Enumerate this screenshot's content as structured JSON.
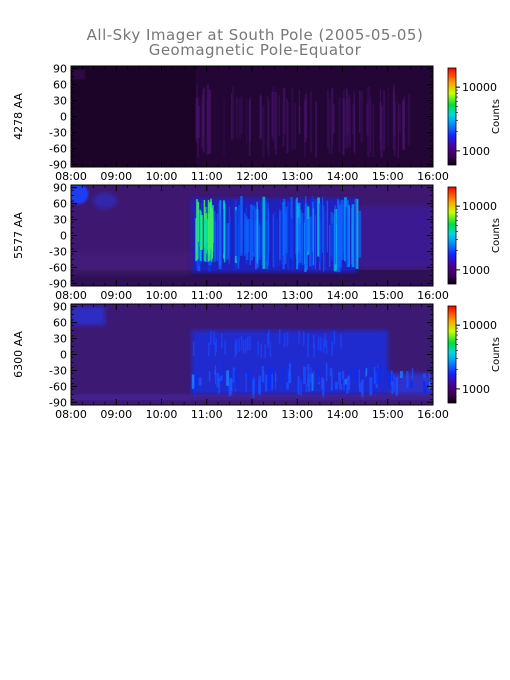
{
  "title": "All-Sky Imager at South Pole (2005-05-05)",
  "subtitle": "Geomagnetic Pole-Equator",
  "chart_data": [
    {
      "type": "heatmap",
      "ylabel": "4278 AA",
      "x_ticks": [
        "08:00",
        "09:00",
        "10:00",
        "11:00",
        "12:00",
        "13:00",
        "14:00",
        "15:00",
        "16:00"
      ],
      "y_ticks": [
        90,
        60,
        30,
        0,
        -30,
        -60,
        -90
      ],
      "ylim": [
        -95,
        95
      ],
      "xlim": [
        "08:00",
        "16:00"
      ],
      "colorbar": {
        "label": "Counts",
        "ticks": [
          10000,
          1000
        ],
        "tick_labels": [
          "10000",
          "1000"
        ],
        "scale": "log"
      },
      "dominant_level": "very low",
      "features": [
        {
          "time_range": [
            "08:00",
            "10:45"
          ],
          "lat_range": [
            -90,
            90
          ],
          "level": "background"
        },
        {
          "time_range": [
            "10:45",
            "15:30"
          ],
          "lat_range": [
            -80,
            60
          ],
          "level": "faint streaks"
        }
      ]
    },
    {
      "type": "heatmap",
      "ylabel": "5577 AA",
      "x_ticks": [
        "08:00",
        "09:00",
        "10:00",
        "11:00",
        "12:00",
        "13:00",
        "14:00",
        "15:00",
        "16:00"
      ],
      "y_ticks": [
        90,
        60,
        30,
        0,
        -30,
        -60,
        -90
      ],
      "ylim": [
        -95,
        95
      ],
      "xlim": [
        "08:00",
        "16:00"
      ],
      "colorbar": {
        "label": "Counts",
        "ticks": [
          10000,
          1000
        ],
        "tick_labels": [
          "10000",
          "1000"
        ],
        "scale": "log"
      },
      "features": [
        {
          "time_range": [
            "08:00",
            "08:30"
          ],
          "lat_range": [
            55,
            90
          ],
          "level": "moderate"
        },
        {
          "time_range": [
            "10:40",
            "14:20"
          ],
          "lat_range": [
            -70,
            75
          ],
          "level": "bright"
        },
        {
          "time_range": [
            "10:40",
            "11:10"
          ],
          "lat_range": [
            -60,
            60
          ],
          "level": "brightest"
        },
        {
          "time_range": [
            "14:20",
            "16:00"
          ],
          "lat_range": [
            -60,
            60
          ],
          "level": "moderate"
        }
      ]
    },
    {
      "type": "heatmap",
      "ylabel": "6300 AA",
      "x_ticks": [
        "08:00",
        "09:00",
        "10:00",
        "11:00",
        "12:00",
        "13:00",
        "14:00",
        "15:00",
        "16:00"
      ],
      "y_ticks": [
        90,
        60,
        30,
        0,
        -30,
        -60,
        -90
      ],
      "ylim": [
        -95,
        95
      ],
      "xlim": [
        "08:00",
        "16:00"
      ],
      "colorbar": {
        "label": "Counts",
        "ticks": [
          10000,
          1000
        ],
        "tick_labels": [
          "10000",
          "1000"
        ],
        "scale": "log"
      },
      "features": [
        {
          "time_range": [
            "08:00",
            "08:45"
          ],
          "lat_range": [
            55,
            90
          ],
          "level": "moderate"
        },
        {
          "time_range": [
            "10:40",
            "15:00"
          ],
          "lat_range": [
            -75,
            45
          ],
          "level": "bright"
        },
        {
          "time_range": [
            "15:00",
            "16:00"
          ],
          "lat_range": [
            -75,
            -35
          ],
          "level": "moderate"
        }
      ]
    }
  ]
}
